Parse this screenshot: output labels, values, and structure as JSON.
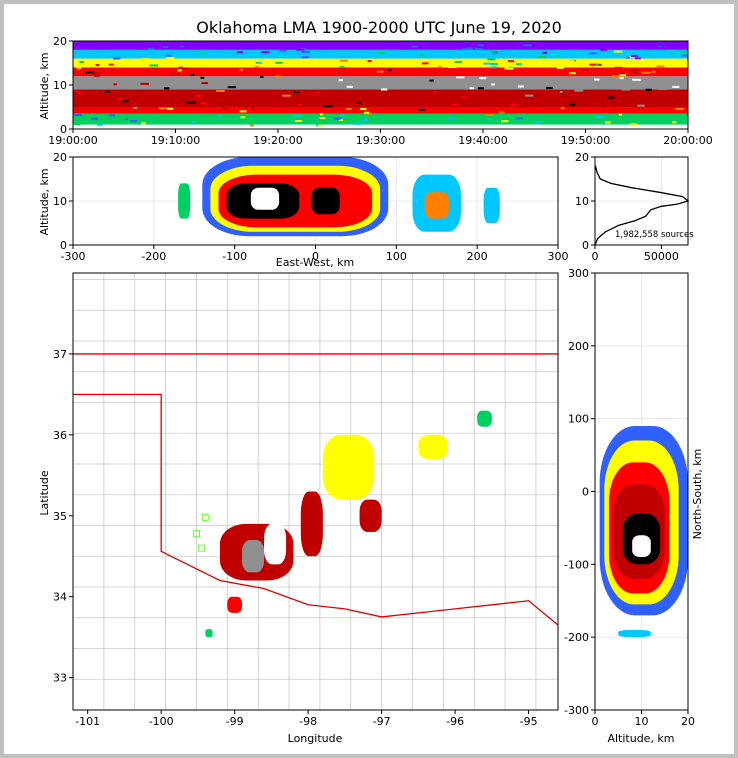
{
  "title": "Oklahoma LMA 1900-2000 UTC June 19, 2020",
  "colors": {
    "frame": "#c0c0c0",
    "state_border": "#e00000",
    "county_lines": "#c8c8c8",
    "station_marker": "#66ff33",
    "density_scale": [
      "#8000ff",
      "#3060ff",
      "#00c8ff",
      "#00d060",
      "#ffff00",
      "#ff8000",
      "#ff0000",
      "#c00000",
      "#000000",
      "#909090",
      "#ffffff"
    ]
  },
  "chart_data": [
    {
      "type": "heatmap",
      "name": "altitude-time",
      "ylabel": "Altitude, km",
      "xlabel": "",
      "xticks": [
        "19:00:00",
        "19:10:00",
        "19:20:00",
        "19:30:00",
        "19:40:00",
        "19:50:00",
        "20:00:00"
      ],
      "yticks": [
        0,
        10,
        20
      ],
      "ylim": [
        0,
        20
      ],
      "bands": [
        {
          "alt": [
            1,
            3.5
          ],
          "level": 3
        },
        {
          "alt": [
            3.5,
            5
          ],
          "level": 6
        },
        {
          "alt": [
            5,
            9
          ],
          "level": 7
        },
        {
          "alt": [
            9,
            12
          ],
          "level": 9
        },
        {
          "alt": [
            12,
            14
          ],
          "level": 6
        },
        {
          "alt": [
            14,
            16
          ],
          "level": 4
        },
        {
          "alt": [
            16,
            18
          ],
          "level": 2
        },
        {
          "alt": [
            18,
            20
          ],
          "level": 0
        }
      ]
    },
    {
      "type": "heatmap",
      "name": "east-west-altitude",
      "xlabel": "East-West, km",
      "ylabel": "Altitude, km",
      "xlim": [
        -300,
        300
      ],
      "ylim": [
        0,
        20
      ],
      "xticks": [
        -300,
        -200,
        -100,
        0,
        100,
        200,
        300
      ],
      "yticks": [
        0,
        10,
        20
      ],
      "cells": [
        {
          "x": [
            -170,
            -155
          ],
          "alt": [
            6,
            14
          ],
          "level": 3
        },
        {
          "x": [
            -140,
            90
          ],
          "alt": [
            2,
            20
          ],
          "level": 1
        },
        {
          "x": [
            -130,
            80
          ],
          "alt": [
            3,
            18
          ],
          "level": 4
        },
        {
          "x": [
            -120,
            70
          ],
          "alt": [
            4,
            16
          ],
          "level": 6
        },
        {
          "x": [
            -110,
            -20
          ],
          "alt": [
            6,
            14
          ],
          "level": 8
        },
        {
          "x": [
            -80,
            -45
          ],
          "alt": [
            8,
            13
          ],
          "level": 10
        },
        {
          "x": [
            -5,
            30
          ],
          "alt": [
            7,
            13
          ],
          "level": 8
        },
        {
          "x": [
            120,
            180
          ],
          "alt": [
            3,
            16
          ],
          "level": 2
        },
        {
          "x": [
            135,
            165
          ],
          "alt": [
            6,
            12
          ],
          "level": 5
        },
        {
          "x": [
            208,
            228
          ],
          "alt": [
            5,
            13
          ],
          "level": 2
        }
      ]
    },
    {
      "type": "line",
      "name": "altitude-histogram",
      "annotation": "1,982,558 sources",
      "xlim": [
        0,
        70000
      ],
      "ylim": [
        0,
        20
      ],
      "xticks": [
        0,
        50000
      ],
      "yticks": [
        0,
        10,
        20
      ],
      "x": [
        0,
        2000,
        8000,
        18000,
        30000,
        38000,
        42000,
        50000,
        62000,
        70000,
        66000,
        48000,
        28000,
        12000,
        4000,
        1500,
        300
      ],
      "y": [
        0,
        1.5,
        3,
        4.5,
        5.5,
        6.5,
        8,
        8.8,
        9.3,
        10,
        11,
        12,
        13,
        14,
        15,
        16.5,
        18
      ]
    },
    {
      "type": "heatmap",
      "name": "plan-view",
      "xlabel": "Longitude",
      "ylabel": "Latitude",
      "xlim": [
        -101.2,
        -94.6
      ],
      "ylim": [
        32.6,
        38.0
      ],
      "xticks": [
        -101,
        -100,
        -99,
        -98,
        -97,
        -96,
        -95
      ],
      "yticks": [
        33,
        34,
        35,
        36,
        37
      ],
      "cells": [
        {
          "lon": [
            -99.2,
            -98.2
          ],
          "lat": [
            34.2,
            34.9
          ],
          "level": 7
        },
        {
          "lon": [
            -98.9,
            -98.6
          ],
          "lat": [
            34.3,
            34.7
          ],
          "level": 9
        },
        {
          "lon": [
            -98.6,
            -98.3
          ],
          "lat": [
            34.4,
            34.9
          ],
          "level": 10
        },
        {
          "lon": [
            -98.1,
            -97.8
          ],
          "lat": [
            34.5,
            35.3
          ],
          "level": 7
        },
        {
          "lon": [
            -97.8,
            -97.1
          ],
          "lat": [
            35.2,
            36.0
          ],
          "level": 4
        },
        {
          "lon": [
            -97.3,
            -97.0
          ],
          "lat": [
            34.8,
            35.2
          ],
          "level": 7
        },
        {
          "lon": [
            -96.5,
            -96.1
          ],
          "lat": [
            35.7,
            36.0
          ],
          "level": 4
        },
        {
          "lon": [
            -95.7,
            -95.5
          ],
          "lat": [
            36.1,
            36.3
          ],
          "level": 3
        },
        {
          "lon": [
            -99.4,
            -99.3
          ],
          "lat": [
            33.5,
            33.6
          ],
          "level": 3
        },
        {
          "lon": [
            -99.1,
            -98.9
          ],
          "lat": [
            33.8,
            34.0
          ],
          "level": 6
        }
      ]
    },
    {
      "type": "heatmap",
      "name": "altitude-north-south",
      "xlabel": "Altitude, km",
      "ylabel": "North-South, km",
      "xlim": [
        0,
        20
      ],
      "ylim": [
        -300,
        300
      ],
      "xticks": [
        0,
        10,
        20
      ],
      "yticks": [
        -300,
        -200,
        -100,
        0,
        100,
        200,
        300
      ],
      "cells": [
        {
          "alt": [
            1,
            20
          ],
          "y": [
            -170,
            90
          ],
          "level": 1
        },
        {
          "alt": [
            2,
            18
          ],
          "y": [
            -155,
            70
          ],
          "level": 4
        },
        {
          "alt": [
            3,
            16
          ],
          "y": [
            -140,
            40
          ],
          "level": 6
        },
        {
          "alt": [
            4,
            15
          ],
          "y": [
            -120,
            10
          ],
          "level": 7
        },
        {
          "alt": [
            6,
            14
          ],
          "y": [
            -100,
            -30
          ],
          "level": 8
        },
        {
          "alt": [
            8,
            12
          ],
          "y": [
            -90,
            -60
          ],
          "level": 10
        },
        {
          "alt": [
            5,
            12
          ],
          "y": [
            -200,
            -190
          ],
          "level": 2
        }
      ]
    }
  ]
}
